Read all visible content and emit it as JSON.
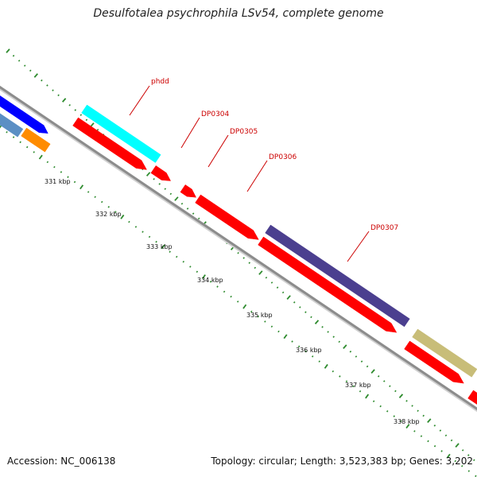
{
  "title": "Desulfotalea psychrophila LSv54, complete genome",
  "footer": {
    "accession": "Accession: NC_006138",
    "summary": "Topology: circular; Length: 3,523,383 bp; Genes: 3,202"
  },
  "colors": {
    "backbone": "#8c8c8c",
    "tick": "#2e8b2e",
    "gene_label": "#cc0000",
    "red": "#ff0000",
    "cyan": "#00ffff",
    "blue": "#0000ff",
    "steel": "#5b8fc4",
    "orange": "#ff8c00",
    "purple": "#4b3f8f",
    "khaki": "#c8bd78"
  },
  "ruler": {
    "labels": [
      "331 kbp",
      "332 kbp",
      "333 kbp",
      "334 kbp",
      "335 kbp",
      "336 kbp",
      "337 kbp",
      "338 kbp"
    ]
  },
  "gene_labels": [
    "phdd",
    "DP0304",
    "DP0305",
    "DP0306",
    "DP0307"
  ],
  "features": [
    {
      "name": "blue-gene",
      "color": "blue"
    },
    {
      "name": "steel-gene",
      "color": "steel"
    },
    {
      "name": "orange-gene",
      "color": "orange"
    },
    {
      "name": "cyan-gene-phdd",
      "color": "cyan"
    },
    {
      "name": "red-gene-1",
      "color": "red"
    },
    {
      "name": "red-gene-2",
      "color": "red"
    },
    {
      "name": "red-gene-3",
      "color": "red"
    },
    {
      "name": "red-gene-4",
      "color": "red"
    },
    {
      "name": "red-gene-5",
      "color": "red"
    },
    {
      "name": "purple-gene-dp0307",
      "color": "purple"
    },
    {
      "name": "red-gene-6",
      "color": "red"
    },
    {
      "name": "khaki-gene",
      "color": "khaki"
    },
    {
      "name": "red-gene-7",
      "color": "red"
    }
  ]
}
